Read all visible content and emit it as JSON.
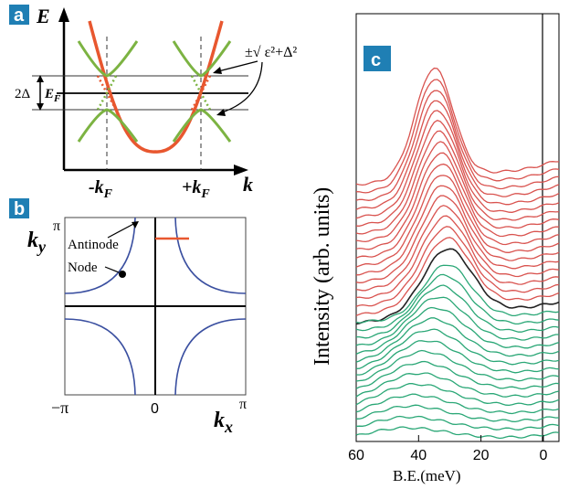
{
  "chart_data": [
    {
      "panel": "a",
      "type": "diagram",
      "y_axis_label": "E",
      "x_axis_label": "k",
      "x_ticks": [
        "-k",
        "+k"
      ],
      "tick_subscript": "F",
      "level_label": "E",
      "level_subscript": "F",
      "gap_label": "2Δ",
      "annotation": "±√ ε²+Δ²",
      "colors": {
        "bare_band": "#e8572f",
        "bogoliubov": "#7cb342"
      }
    },
    {
      "panel": "b",
      "type": "diagram",
      "y_axis_label": "k",
      "y_axis_subscript": "y",
      "x_axis_label": "k",
      "x_axis_subscript": "x",
      "x_ticks": [
        "−π",
        "0",
        "π"
      ],
      "y_top_tick": "π",
      "labels": {
        "antinode": "Antinode",
        "node": "Node"
      },
      "colors": {
        "fermi_surface": "#3a4fa0",
        "cut": "#e8572f"
      }
    },
    {
      "panel": "c",
      "type": "line",
      "xlabel": "B.E.(meV)",
      "ylabel": "Intensity (arb. units)",
      "xlim": [
        60,
        -5
      ],
      "x_ticks": [
        60,
        40,
        20,
        0
      ],
      "n_curves": 34,
      "colors": {
        "upper": "#d9534f",
        "middle": "#222222",
        "lower": "#2aa776"
      },
      "series": [
        {
          "group": "upper",
          "count": 17,
          "peak_be": 35
        },
        {
          "group": "middle",
          "count": 1,
          "peak_be": 31
        },
        {
          "group": "lower",
          "count": 16,
          "peak_be": [
            30,
            45
          ]
        }
      ]
    }
  ],
  "badges": {
    "a": "a",
    "b": "b",
    "c": "c"
  }
}
